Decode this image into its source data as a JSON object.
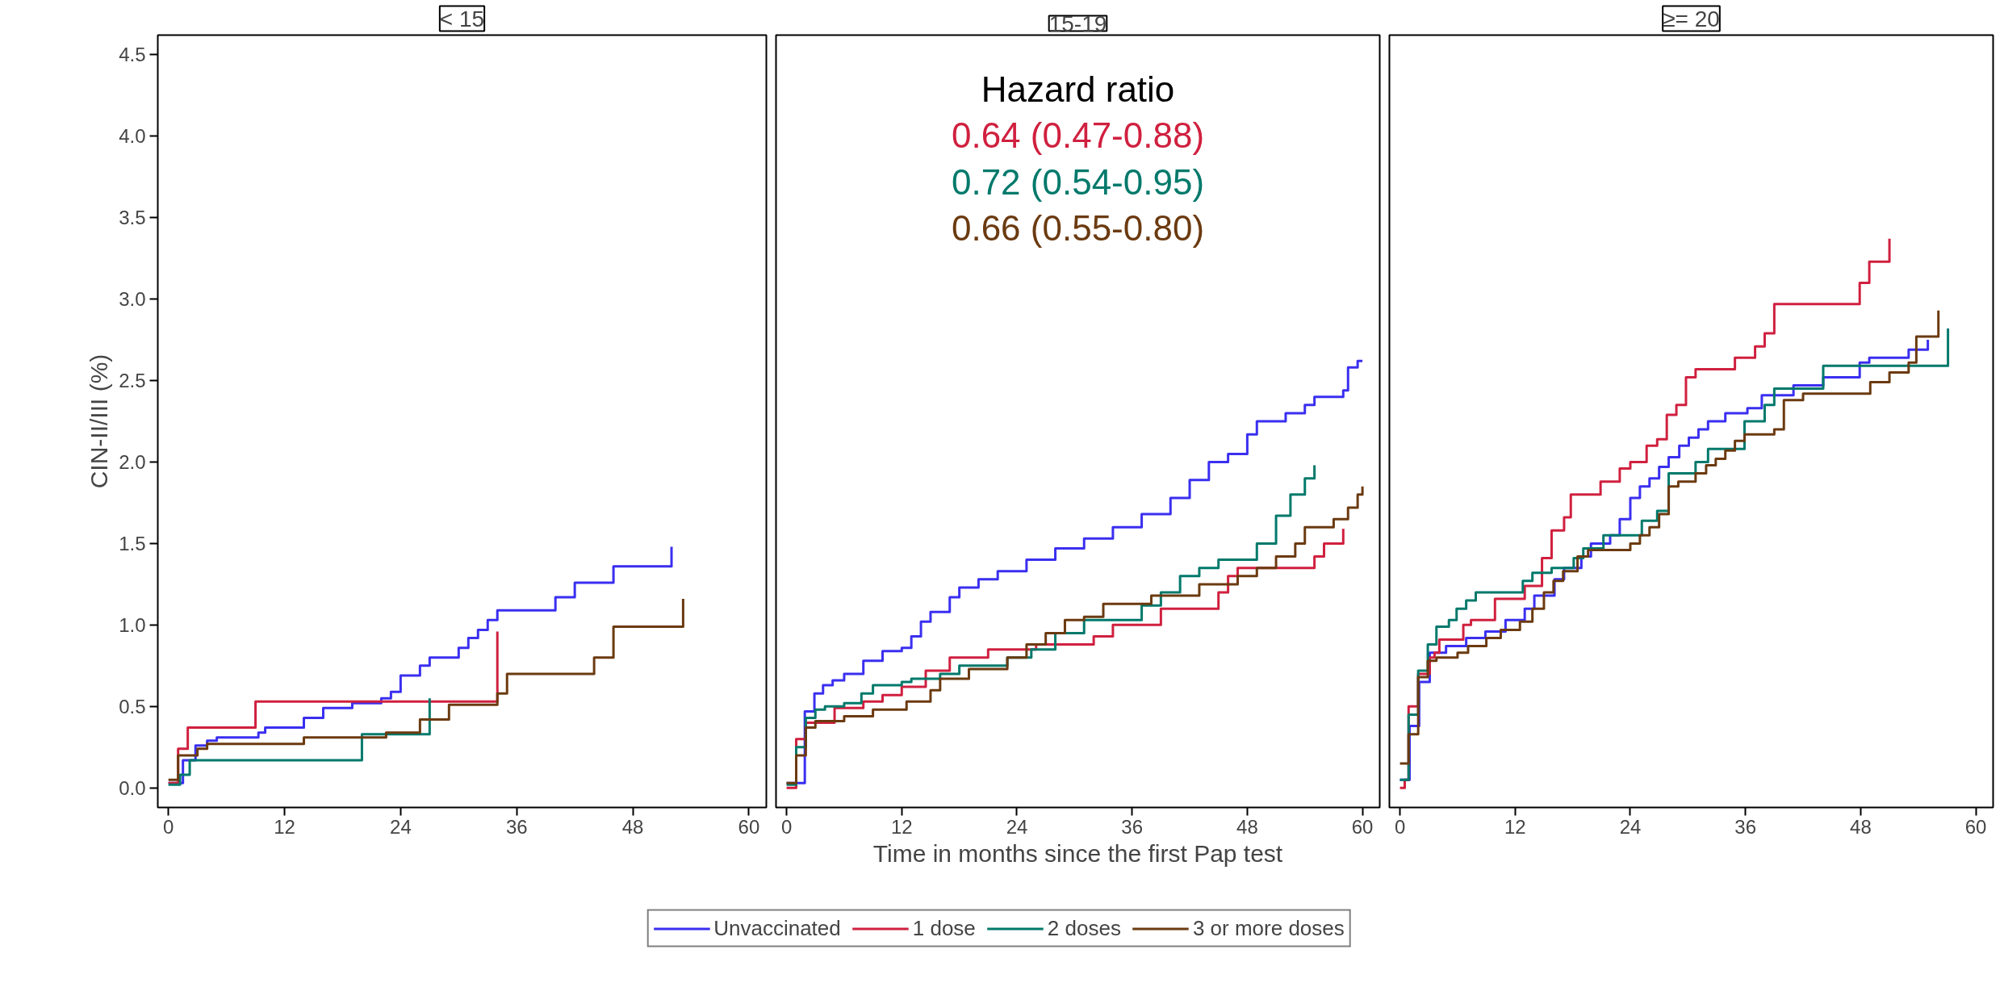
{
  "chart_data": [
    {
      "type": "step",
      "title": "< 15",
      "ylabel": "CIN-II/III (%)",
      "xlim": [
        -1.1,
        61.8
      ],
      "ylim": [
        -0.12,
        4.62
      ],
      "xticks": [
        0,
        12,
        24,
        36,
        48,
        60
      ],
      "yticks": [
        {
          "value": 0,
          "label": "0.0"
        },
        0.5,
        {
          "value": 1,
          "label": "1.0"
        },
        1.5,
        {
          "value": 2,
          "label": "2.0"
        },
        2.5,
        {
          "value": 3,
          "label": "3.0"
        },
        3.5,
        {
          "value": 4,
          "label": "4.0"
        },
        4.5
      ],
      "grid": false,
      "series": [
        {
          "color": "#3a2ff0",
          "x": [
            0,
            1.5,
            2.8,
            4,
            5,
            9.3,
            10,
            14,
            16,
            19,
            22,
            23,
            24,
            26,
            27,
            30,
            31,
            32,
            33,
            34,
            40,
            42,
            46,
            52
          ],
          "values": [
            0.03,
            0.17,
            0.26,
            0.29,
            0.31,
            0.34,
            0.37,
            0.43,
            0.49,
            0.52,
            0.55,
            0.59,
            0.69,
            0.75,
            0.8,
            0.86,
            0.92,
            0.97,
            1.03,
            1.09,
            1.17,
            1.26,
            1.36,
            1.48
          ]
        },
        {
          "color": "#d0203f",
          "x": [
            0,
            1,
            2,
            9,
            34
          ],
          "values": [
            0.03,
            0.24,
            0.37,
            0.53,
            0.96
          ]
        },
        {
          "color": "#00796b",
          "x": [
            0,
            1.2,
            2.2,
            20,
            27
          ],
          "values": [
            0.02,
            0.08,
            0.17,
            0.33,
            0.55
          ]
        },
        {
          "color": "#6b3a10",
          "x": [
            0,
            1,
            3,
            4,
            14,
            22.5,
            26,
            29,
            34,
            35,
            44,
            46,
            53.2
          ],
          "values": [
            0.05,
            0.2,
            0.24,
            0.27,
            0.31,
            0.34,
            0.42,
            0.51,
            0.58,
            0.7,
            0.8,
            0.99,
            1.16
          ]
        }
      ]
    },
    {
      "type": "step",
      "title": "15-19",
      "xlabel": "Time in months since the first Pap test",
      "xlim": [
        -1.1,
        61.8
      ],
      "ylim": [
        -0.12,
        4.62
      ],
      "xticks": [
        0,
        12,
        24,
        36,
        48,
        60
      ],
      "tick_labels": "x",
      "grid": false,
      "legend": "bottom",
      "annotations": [
        "Hazard ratio",
        "0.64 (0.47-0.88)",
        "0.72 (0.54-0.95)",
        "0.66 (0.55-0.80)"
      ],
      "series": [
        {
          "name": "Unvaccinated",
          "color": "#3a2ff0",
          "x": [
            0,
            1.9,
            2.9,
            3.8,
            4.8,
            6,
            8,
            10,
            12,
            13,
            14,
            15,
            17,
            18,
            20,
            22,
            25,
            28,
            31,
            34,
            37,
            40,
            42,
            44,
            46,
            48,
            49,
            52,
            54,
            55,
            58,
            58.5,
            59.5,
            60
          ],
          "values": [
            0.03,
            0.47,
            0.58,
            0.63,
            0.66,
            0.7,
            0.78,
            0.84,
            0.86,
            0.93,
            1.02,
            1.08,
            1.17,
            1.23,
            1.28,
            1.33,
            1.4,
            1.47,
            1.53,
            1.6,
            1.68,
            1.78,
            1.89,
            2.0,
            2.05,
            2.17,
            2.25,
            2.3,
            2.35,
            2.4,
            2.44,
            2.58,
            2.62,
            2.62
          ]
        },
        {
          "name": "1 dose",
          "color": "#d0203f",
          "x": [
            0,
            1,
            2,
            5,
            8,
            10,
            12,
            14.5,
            17,
            21,
            26,
            32,
            34,
            39,
            45,
            46,
            47,
            55,
            56,
            58
          ],
          "values": [
            0.0,
            0.3,
            0.4,
            0.49,
            0.53,
            0.57,
            0.62,
            0.72,
            0.8,
            0.85,
            0.88,
            0.93,
            1.0,
            1.1,
            1.2,
            1.3,
            1.35,
            1.42,
            1.5,
            1.59
          ]
        },
        {
          "name": "2 doses",
          "color": "#00796b",
          "x": [
            0,
            1,
            2,
            3,
            4,
            6,
            7.8,
            9,
            12,
            13,
            16,
            18,
            23,
            25.5,
            28,
            31,
            37,
            39,
            41,
            43,
            45,
            49,
            51,
            52.5,
            54,
            55
          ],
          "values": [
            0.02,
            0.25,
            0.43,
            0.48,
            0.5,
            0.52,
            0.58,
            0.63,
            0.65,
            0.67,
            0.7,
            0.75,
            0.8,
            0.85,
            0.95,
            1.03,
            1.12,
            1.2,
            1.3,
            1.35,
            1.4,
            1.5,
            1.67,
            1.8,
            1.9,
            1.98
          ]
        },
        {
          "name": "3 or more doses",
          "color": "#6b3a10",
          "x": [
            0,
            1,
            2,
            3,
            6,
            9,
            12.5,
            15,
            16,
            19,
            23,
            25,
            27,
            29,
            31,
            33,
            38,
            43,
            47,
            49,
            51,
            53,
            54,
            57,
            58.5,
            59.5,
            60
          ],
          "values": [
            0.03,
            0.2,
            0.37,
            0.41,
            0.44,
            0.48,
            0.53,
            0.6,
            0.67,
            0.73,
            0.8,
            0.88,
            0.95,
            1.03,
            1.05,
            1.13,
            1.18,
            1.25,
            1.3,
            1.35,
            1.42,
            1.5,
            1.6,
            1.65,
            1.72,
            1.8,
            1.85
          ]
        }
      ]
    },
    {
      "type": "step",
      "title": "≥= 20",
      "xlim": [
        -1.1,
        61.8
      ],
      "ylim": [
        -0.12,
        4.62
      ],
      "xticks": [
        0,
        12,
        24,
        36,
        48,
        60
      ],
      "tick_labels": "x",
      "grid": false,
      "series": [
        {
          "color": "#3a2ff0",
          "x": [
            0,
            1,
            2,
            3.1,
            4.8,
            6.9,
            8.9,
            11,
            13,
            14,
            16.1,
            17.1,
            18.9,
            19.9,
            21.9,
            22.9,
            24,
            25,
            26,
            27,
            28,
            29.1,
            30.1,
            31.1,
            32.1,
            33.9,
            36.2,
            37.7,
            41,
            44.1,
            47.9,
            48.9,
            53,
            55
          ],
          "values": [
            0.05,
            0.38,
            0.65,
            0.83,
            0.87,
            0.92,
            0.96,
            1.03,
            1.1,
            1.18,
            1.28,
            1.35,
            1.42,
            1.5,
            1.55,
            1.65,
            1.78,
            1.85,
            1.9,
            1.97,
            2.03,
            2.1,
            2.15,
            2.2,
            2.25,
            2.3,
            2.33,
            2.41,
            2.47,
            2.52,
            2.61,
            2.64,
            2.69,
            2.75
          ]
        },
        {
          "color": "#d0203f",
          "x": [
            0,
            0.5,
            0.9,
            1.9,
            3.1,
            3.6,
            4.1,
            6.6,
            7.4,
            9.9,
            13,
            14.8,
            15.8,
            17.1,
            17.8,
            20.9,
            22.9,
            24,
            25.7,
            26.8,
            27.8,
            28.8,
            29.8,
            30.8,
            34.9,
            37,
            38,
            39,
            47.9,
            48.9,
            51
          ],
          "values": [
            0.0,
            0.05,
            0.5,
            0.7,
            0.8,
            0.83,
            0.91,
            1.0,
            1.03,
            1.16,
            1.24,
            1.41,
            1.58,
            1.66,
            1.8,
            1.88,
            1.96,
            2.0,
            2.1,
            2.14,
            2.29,
            2.35,
            2.52,
            2.57,
            2.64,
            2.71,
            2.79,
            2.97,
            3.1,
            3.23,
            3.37
          ]
        },
        {
          "color": "#00796b",
          "x": [
            0,
            0.9,
            1.9,
            2.9,
            3.8,
            5.1,
            5.9,
            6.9,
            7.9,
            12.8,
            13.8,
            15.8,
            18.1,
            19.1,
            21.2,
            25.2,
            26.8,
            28,
            30.8,
            32.1,
            35.9,
            38,
            39,
            44.1,
            57.1
          ],
          "values": [
            0.05,
            0.45,
            0.72,
            0.88,
            0.99,
            1.03,
            1.1,
            1.15,
            1.2,
            1.27,
            1.32,
            1.35,
            1.41,
            1.47,
            1.55,
            1.64,
            1.7,
            1.93,
            2.0,
            2.08,
            2.25,
            2.35,
            2.45,
            2.59,
            2.82
          ]
        },
        {
          "color": "#6b3a10",
          "x": [
            0,
            0.9,
            1.9,
            2.9,
            3.8,
            6,
            7.1,
            9,
            10.5,
            12.5,
            13.8,
            15,
            16,
            17,
            18.5,
            19.6,
            24,
            25,
            26,
            27,
            28,
            29,
            30.8,
            31.9,
            32.9,
            33.9,
            34.9,
            35.9,
            39,
            40,
            42,
            49,
            51,
            53,
            53.8,
            56.1
          ],
          "values": [
            0.15,
            0.33,
            0.68,
            0.78,
            0.8,
            0.83,
            0.87,
            0.92,
            0.97,
            1.02,
            1.1,
            1.2,
            1.27,
            1.33,
            1.42,
            1.46,
            1.5,
            1.55,
            1.6,
            1.68,
            1.85,
            1.88,
            1.93,
            1.98,
            2.02,
            2.07,
            2.13,
            2.17,
            2.2,
            2.38,
            2.42,
            2.49,
            2.55,
            2.61,
            2.77,
            2.93
          ]
        }
      ]
    }
  ]
}
